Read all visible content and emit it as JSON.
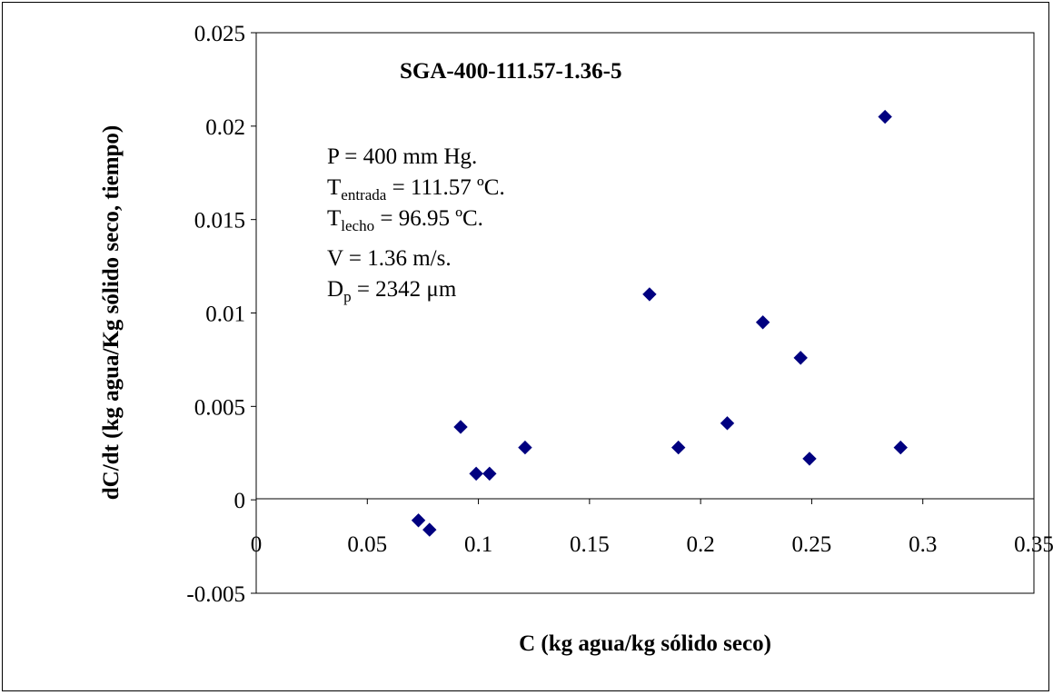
{
  "chart_data": {
    "type": "scatter",
    "title": "SGA-400-111.57-1.36-5",
    "xlabel": "C (kg agua/kg sólido seco)",
    "ylabel": "dC/dt (kg agua/Kg sólido seco, tiempo)",
    "xlim": [
      0,
      0.35
    ],
    "ylim": [
      -0.005,
      0.025
    ],
    "x_ticks": [
      "0",
      "0.05",
      "0.1",
      "0.15",
      "0.2",
      "0.25",
      "0.3",
      "0.35"
    ],
    "y_ticks": [
      "0.025",
      "0.02",
      "0.015",
      "0.01",
      "0.005",
      "0",
      "-0.005"
    ],
    "grid": false,
    "legend": "none",
    "marker": "diamond",
    "series_color": "#000080",
    "points": [
      {
        "x": 0.073,
        "y": -0.0011
      },
      {
        "x": 0.078,
        "y": -0.0016
      },
      {
        "x": 0.092,
        "y": 0.0039
      },
      {
        "x": 0.099,
        "y": 0.0014
      },
      {
        "x": 0.105,
        "y": 0.0014
      },
      {
        "x": 0.121,
        "y": 0.0028
      },
      {
        "x": 0.177,
        "y": 0.011
      },
      {
        "x": 0.19,
        "y": 0.0028
      },
      {
        "x": 0.212,
        "y": 0.0041
      },
      {
        "x": 0.228,
        "y": 0.0095
      },
      {
        "x": 0.245,
        "y": 0.0076
      },
      {
        "x": 0.249,
        "y": 0.0022
      },
      {
        "x": 0.283,
        "y": 0.0205
      },
      {
        "x": 0.29,
        "y": 0.0028
      }
    ],
    "annotations": {
      "line1": "P = 400 mm Hg.",
      "line2_main": "T",
      "line2_sub": "entrada",
      "line2_rest": " = 111.57 ºC.",
      "line3_main": "T",
      "line3_sub": "lecho",
      "line3_rest": " = 96.95 ºC.",
      "line4": "V = 1.36 m/s.",
      "line5_main": "D",
      "line5_sub": "p",
      "line5_rest": " = 2342 μm"
    }
  }
}
